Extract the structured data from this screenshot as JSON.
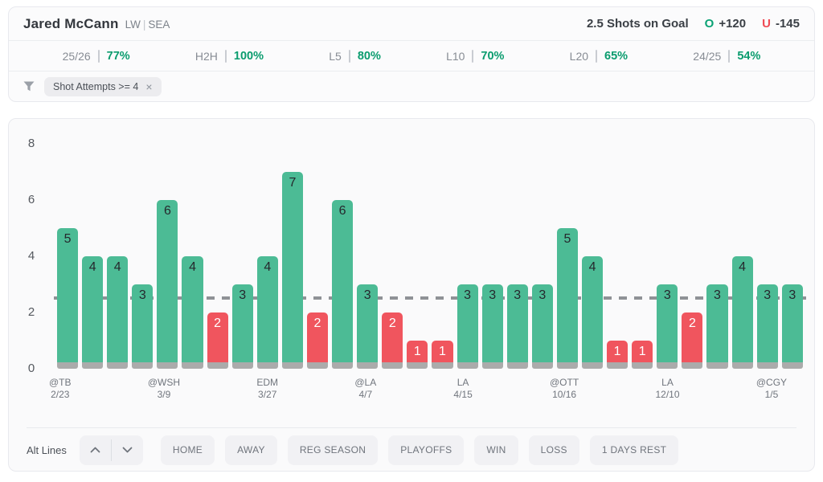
{
  "header": {
    "player": "Jared McCann",
    "position": "LW",
    "divider": "|",
    "team": "SEA",
    "prop": "2.5 Shots on Goal",
    "over_label": "O",
    "over_odds": "+120",
    "under_label": "U",
    "under_odds": "-145"
  },
  "stats": [
    {
      "label": "25/26",
      "value": "77%"
    },
    {
      "label": "H2H",
      "value": "100%"
    },
    {
      "label": "L5",
      "value": "80%"
    },
    {
      "label": "L10",
      "value": "70%"
    },
    {
      "label": "L20",
      "value": "65%"
    },
    {
      "label": "24/25",
      "value": "54%"
    }
  ],
  "filter": {
    "icon": "funnel-filter-icon",
    "chip_label": "Shot Attempts >= 4",
    "chip_close": "×"
  },
  "chart_data": {
    "type": "bar",
    "title": "Shots on goal by game vs 2.5 line",
    "line_value": 2.5,
    "ylim": [
      0,
      8
    ],
    "y_ticks": [
      0,
      2,
      4,
      6,
      8
    ],
    "grid": "off",
    "colors": {
      "over": "#4cbb95",
      "under": "#f0555e",
      "base": "#ababab",
      "dash": "#8f9296",
      "label_on_over": "#25282d",
      "label_on_under": "#ffffff"
    },
    "games": [
      {
        "value": 5,
        "opp": "@TB",
        "date": "2/23"
      },
      {
        "value": 4
      },
      {
        "value": 4
      },
      {
        "value": 3
      },
      {
        "value": 6,
        "opp": "@WSH",
        "date": "3/9"
      },
      {
        "value": 4
      },
      {
        "value": 2
      },
      {
        "value": 3
      },
      {
        "value": 4,
        "opp": "EDM",
        "date": "3/27"
      },
      {
        "value": 7
      },
      {
        "value": 2
      },
      {
        "value": 6
      },
      {
        "value": 3,
        "opp": "@LA",
        "date": "4/7"
      },
      {
        "value": 2
      },
      {
        "value": 1
      },
      {
        "value": 1
      },
      {
        "value": 3,
        "opp": "LA",
        "date": "4/15"
      },
      {
        "value": 3
      },
      {
        "value": 3
      },
      {
        "value": 3
      },
      {
        "value": 5,
        "opp": "@OTT",
        "date": "10/16"
      },
      {
        "value": 4
      },
      {
        "value": 1
      },
      {
        "value": 1
      },
      {
        "value": 3,
        "opp": "LA",
        "date": "12/10"
      },
      {
        "value": 2
      },
      {
        "value": 3
      },
      {
        "value": 4
      },
      {
        "value": 3,
        "opp": "@CGY",
        "date": "1/5"
      },
      {
        "value": 3
      }
    ]
  },
  "controls": {
    "alt_lines_label": "Alt Lines",
    "up_icon": "chevron-up-icon",
    "down_icon": "chevron-down-icon",
    "buttons": [
      "HOME",
      "AWAY",
      "REG SEASON",
      "PLAYOFFS",
      "WIN",
      "LOSS",
      "1 DAYS REST"
    ]
  }
}
